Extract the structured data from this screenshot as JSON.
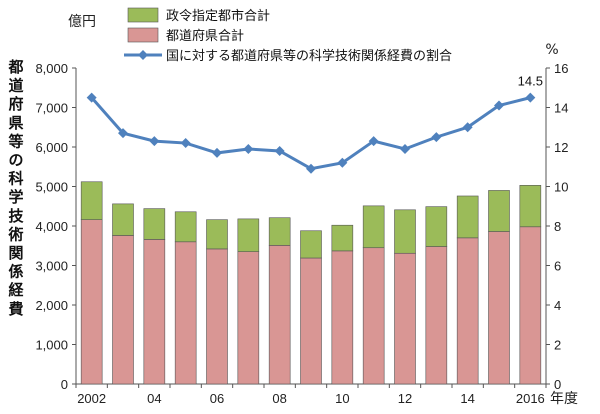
{
  "chart_data": {
    "type": "bar+line",
    "categories": [
      "2002",
      "03",
      "04",
      "05",
      "06",
      "07",
      "08",
      "09",
      "10",
      "11",
      "12",
      "13",
      "14",
      "15",
      "2016"
    ],
    "x_tick_labels": [
      "2002",
      "",
      "04",
      "",
      "06",
      "",
      "08",
      "",
      "10",
      "",
      "12",
      "",
      "14",
      "",
      "2016"
    ],
    "x_unit": "年度",
    "left_axis": {
      "unit_label": "億円",
      "title": "都道府県等の科学技術関係経費",
      "ylim": [
        0,
        8000
      ],
      "ticks": [
        "0",
        "1,000",
        "2,000",
        "3,000",
        "4,000",
        "5,000",
        "6,000",
        "7,000",
        "8,000"
      ]
    },
    "right_axis": {
      "unit_label": "%",
      "ylim": [
        0,
        16
      ],
      "ticks": [
        "0",
        "2",
        "4",
        "6",
        "8",
        "10",
        "12",
        "14",
        "16"
      ]
    },
    "series": [
      {
        "name": "都道府県合計",
        "kind": "bar-stack-bottom",
        "axis": "left",
        "color": "#d99694",
        "values": [
          4160,
          3760,
          3660,
          3600,
          3420,
          3350,
          3510,
          3190,
          3370,
          3450,
          3310,
          3480,
          3700,
          3860,
          3980
        ]
      },
      {
        "name": "政令指定都市合計",
        "kind": "bar-stack-top",
        "axis": "left",
        "color": "#9bbb59",
        "values": [
          960,
          800,
          780,
          760,
          740,
          830,
          700,
          690,
          650,
          1060,
          1100,
          1010,
          1060,
          1040,
          1050
        ]
      },
      {
        "name": "国に対する都道府県等の科学技術関係経費の割合",
        "kind": "line",
        "axis": "right",
        "color": "#4f81bd",
        "values": [
          14.5,
          12.7,
          12.3,
          12.2,
          11.7,
          11.9,
          11.8,
          10.9,
          11.2,
          12.3,
          11.9,
          12.5,
          13.0,
          14.1,
          14.5
        ]
      }
    ],
    "annotations": [
      {
        "text": "14.5",
        "series": 2,
        "index": 14
      }
    ],
    "grid": false,
    "legend_position": "top-left"
  }
}
